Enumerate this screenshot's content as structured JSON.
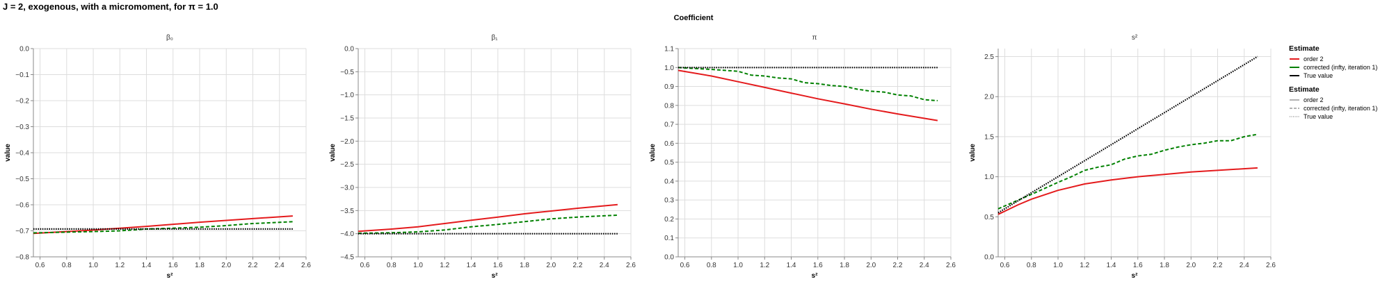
{
  "page": {
    "title": "J = 2, exogenous, with a micromoment,  for π = 1.0",
    "header": "Coefficient"
  },
  "legend": {
    "color_title": "Estimate",
    "dash_title": "Estimate",
    "items": [
      {
        "label": "order 2",
        "color": "#e41a1c",
        "dash": "solid"
      },
      {
        "label": "corrected (infty, iteration 1)",
        "color": "#008000",
        "dash": "dashed"
      },
      {
        "label": "True value",
        "color": "#000000",
        "dash": "dotted"
      }
    ]
  },
  "chart_data": [
    {
      "type": "line",
      "title": "β₀",
      "xlabel": "s²",
      "ylabel": "value",
      "xlim": [
        0.55,
        2.6
      ],
      "ylim": [
        -0.8,
        0.0
      ],
      "xticks": [
        0.6,
        0.8,
        1.0,
        1.2,
        1.4,
        1.6,
        1.8,
        2.0,
        2.2,
        2.4,
        2.6
      ],
      "xtick_labels": [
        "0.6",
        "0.8",
        "1.0",
        "1.2",
        "1.4",
        "1.6",
        "1.8",
        "2.0",
        "2.2",
        "2.4",
        "2.6"
      ],
      "yticks": [
        -0.8,
        -0.7,
        -0.6,
        -0.5,
        -0.4,
        -0.3,
        -0.2,
        -0.1,
        0.0
      ],
      "ytick_labels": [
        "−0.8",
        "−0.7",
        "−0.6",
        "−0.5",
        "−0.4",
        "−0.3",
        "−0.2",
        "−0.1",
        "0.0"
      ],
      "series": [
        {
          "name": "order 2",
          "x": [
            0.55,
            0.8,
            1.0,
            1.2,
            1.4,
            1.6,
            1.8,
            2.0,
            2.2,
            2.5
          ],
          "y": [
            -0.71,
            -0.703,
            -0.697,
            -0.69,
            -0.683,
            -0.675,
            -0.667,
            -0.66,
            -0.653,
            -0.643
          ]
        },
        {
          "name": "corrected (infty, iteration 1)",
          "x": [
            0.55,
            0.8,
            1.0,
            1.2,
            1.4,
            1.6,
            1.8,
            2.0,
            2.2,
            2.5
          ],
          "y": [
            -0.708,
            -0.705,
            -0.703,
            -0.7,
            -0.693,
            -0.69,
            -0.686,
            -0.68,
            -0.672,
            -0.665
          ]
        },
        {
          "name": "True value",
          "x": [
            0.55,
            2.5
          ],
          "y": [
            -0.693,
            -0.693
          ]
        }
      ]
    },
    {
      "type": "line",
      "title": "β₁",
      "xlabel": "s²",
      "ylabel": "value",
      "xlim": [
        0.55,
        2.6
      ],
      "ylim": [
        -4.5,
        0.0
      ],
      "xticks": [
        0.6,
        0.8,
        1.0,
        1.2,
        1.4,
        1.6,
        1.8,
        2.0,
        2.2,
        2.4,
        2.6
      ],
      "xtick_labels": [
        "0.6",
        "0.8",
        "1.0",
        "1.2",
        "1.4",
        "1.6",
        "1.8",
        "2.0",
        "2.2",
        "2.4",
        "2.6"
      ],
      "yticks": [
        -4.5,
        -4.0,
        -3.5,
        -3.0,
        -2.5,
        -2.0,
        -1.5,
        -1.0,
        -0.5,
        0.0
      ],
      "ytick_labels": [
        "−4.5",
        "−4.0",
        "−3.5",
        "−3.0",
        "−2.5",
        "−2.0",
        "−1.5",
        "−1.0",
        "−0.5",
        "0.0"
      ],
      "series": [
        {
          "name": "order 2",
          "x": [
            0.55,
            0.8,
            1.0,
            1.2,
            1.4,
            1.6,
            1.8,
            2.0,
            2.2,
            2.5
          ],
          "y": [
            -3.95,
            -3.9,
            -3.85,
            -3.78,
            -3.71,
            -3.64,
            -3.57,
            -3.51,
            -3.45,
            -3.37
          ]
        },
        {
          "name": "corrected (infty, iteration 1)",
          "x": [
            0.55,
            0.8,
            1.0,
            1.2,
            1.4,
            1.6,
            1.8,
            2.0,
            2.2,
            2.5
          ],
          "y": [
            -3.99,
            -3.98,
            -3.96,
            -3.92,
            -3.85,
            -3.8,
            -3.74,
            -3.68,
            -3.64,
            -3.6
          ]
        },
        {
          "name": "True value",
          "x": [
            0.55,
            2.5
          ],
          "y": [
            -4.0,
            -4.0
          ]
        }
      ]
    },
    {
      "type": "line",
      "title": "π",
      "xlabel": "s²",
      "ylabel": "value",
      "xlim": [
        0.55,
        2.6
      ],
      "ylim": [
        0.0,
        1.1
      ],
      "xticks": [
        0.6,
        0.8,
        1.0,
        1.2,
        1.4,
        1.6,
        1.8,
        2.0,
        2.2,
        2.4,
        2.6
      ],
      "xtick_labels": [
        "0.6",
        "0.8",
        "1.0",
        "1.2",
        "1.4",
        "1.6",
        "1.8",
        "2.0",
        "2.2",
        "2.4",
        "2.6"
      ],
      "yticks": [
        0.0,
        0.1,
        0.2,
        0.3,
        0.4,
        0.5,
        0.6,
        0.7,
        0.8,
        0.9,
        1.0,
        1.1
      ],
      "ytick_labels": [
        "0.0",
        "0.1",
        "0.2",
        "0.3",
        "0.4",
        "0.5",
        "0.6",
        "0.7",
        "0.8",
        "0.9",
        "1.0",
        "1.1"
      ],
      "series": [
        {
          "name": "order 2",
          "x": [
            0.55,
            0.8,
            1.0,
            1.2,
            1.4,
            1.6,
            1.8,
            2.0,
            2.2,
            2.5
          ],
          "y": [
            0.985,
            0.955,
            0.925,
            0.895,
            0.865,
            0.835,
            0.808,
            0.78,
            0.755,
            0.72
          ]
        },
        {
          "name": "corrected (infty, iteration 1)",
          "x": [
            0.55,
            0.8,
            1.0,
            1.1,
            1.2,
            1.3,
            1.4,
            1.5,
            1.6,
            1.7,
            1.8,
            1.9,
            2.0,
            2.1,
            2.2,
            2.3,
            2.4,
            2.5
          ],
          "y": [
            1.0,
            0.99,
            0.98,
            0.96,
            0.955,
            0.945,
            0.94,
            0.92,
            0.915,
            0.905,
            0.9,
            0.885,
            0.875,
            0.87,
            0.855,
            0.85,
            0.83,
            0.825
          ]
        },
        {
          "name": "True value",
          "x": [
            0.55,
            2.5
          ],
          "y": [
            1.0,
            1.0
          ]
        }
      ]
    },
    {
      "type": "line",
      "title": "s²",
      "xlabel": "s²",
      "ylabel": "value",
      "xlim": [
        0.55,
        2.6
      ],
      "ylim": [
        0.0,
        2.6
      ],
      "xticks": [
        0.6,
        0.8,
        1.0,
        1.2,
        1.4,
        1.6,
        1.8,
        2.0,
        2.2,
        2.4,
        2.6
      ],
      "xtick_labels": [
        "0.6",
        "0.8",
        "1.0",
        "1.2",
        "1.4",
        "1.6",
        "1.8",
        "2.0",
        "2.2",
        "2.4",
        "2.6"
      ],
      "yticks": [
        0.0,
        0.5,
        1.0,
        1.5,
        2.0,
        2.5
      ],
      "ytick_labels": [
        "0.0",
        "0.5",
        "1.0",
        "1.5",
        "2.0",
        "2.5"
      ],
      "series": [
        {
          "name": "order 2",
          "x": [
            0.55,
            0.7,
            0.8,
            1.0,
            1.2,
            1.4,
            1.6,
            1.8,
            2.0,
            2.2,
            2.5
          ],
          "y": [
            0.53,
            0.65,
            0.72,
            0.83,
            0.91,
            0.96,
            1.0,
            1.03,
            1.06,
            1.08,
            1.11
          ]
        },
        {
          "name": "corrected (infty, iteration 1)",
          "x": [
            0.55,
            0.8,
            1.0,
            1.1,
            1.2,
            1.3,
            1.4,
            1.5,
            1.6,
            1.7,
            1.8,
            1.9,
            2.0,
            2.1,
            2.2,
            2.3,
            2.4,
            2.5
          ],
          "y": [
            0.6,
            0.78,
            0.93,
            1.0,
            1.08,
            1.12,
            1.15,
            1.22,
            1.26,
            1.28,
            1.33,
            1.37,
            1.4,
            1.42,
            1.45,
            1.45,
            1.5,
            1.53
          ]
        },
        {
          "name": "True value",
          "x": [
            0.55,
            2.5
          ],
          "y": [
            0.55,
            2.5
          ]
        }
      ]
    }
  ]
}
